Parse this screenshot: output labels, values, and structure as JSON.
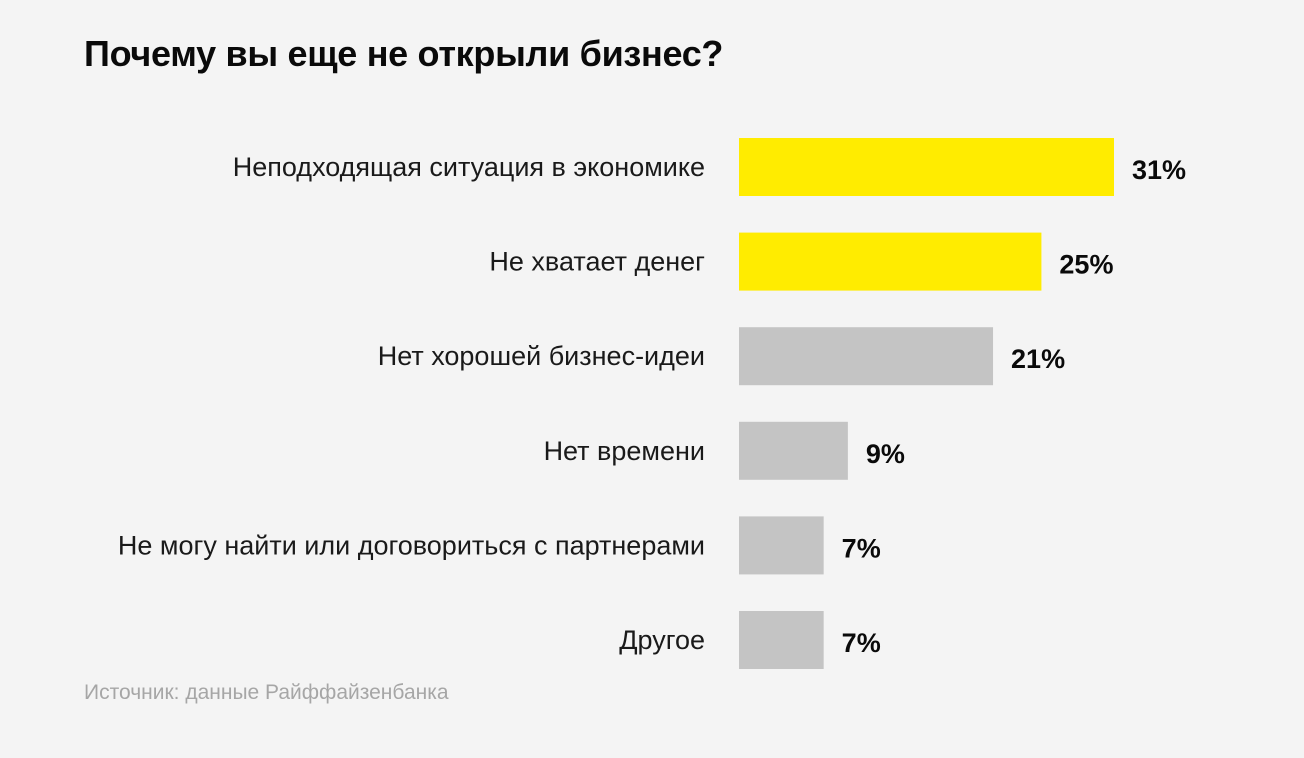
{
  "title": "Почему вы еще не открыли бизнес?",
  "source": "Источник: данные Райффайзенбанка",
  "colors": {
    "background": "#f4f4f4",
    "highlight_bar": "#ffec00",
    "default_bar": "#c4c4c4",
    "text": "#111111",
    "source_text": "#a6a6a6"
  },
  "chart_data": {
    "type": "bar",
    "orientation": "horizontal",
    "title": "Почему вы еще не открыли бизнес?",
    "categories": [
      "Неподходящая ситуация в экономике",
      "Не хватает денег",
      "Нет хорошей бизнес-идеи",
      "Нет времени",
      "Не могу найти или договориться с партнерами",
      "Другое"
    ],
    "values": [
      31,
      25,
      21,
      9,
      7,
      7
    ],
    "value_labels": [
      "31%",
      "25%",
      "21%",
      "9%",
      "7%",
      "7%"
    ],
    "highlighted": [
      true,
      true,
      false,
      false,
      false,
      false
    ],
    "unit": "%",
    "xlim": [
      0,
      31
    ],
    "grid": false,
    "legend": "none"
  }
}
